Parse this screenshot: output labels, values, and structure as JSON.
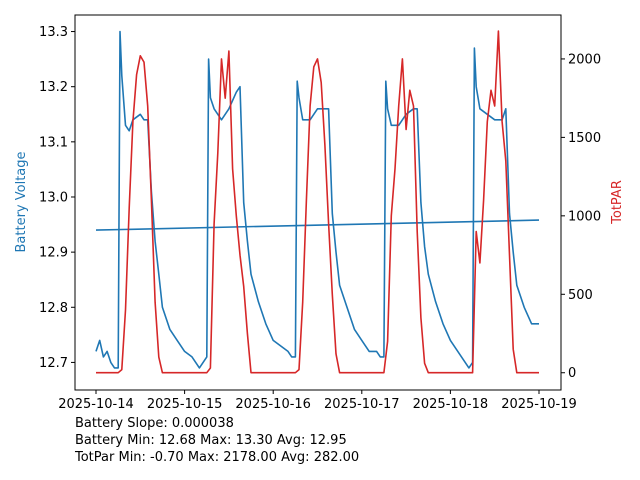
{
  "chart_data": {
    "type": "line",
    "x_type": "date",
    "x_ticks": [
      "2025-10-14",
      "2025-10-15",
      "2025-10-16",
      "2025-10-17",
      "2025-10-18",
      "2025-10-19"
    ],
    "xlim": [
      "2025-10-14",
      "2025-10-19"
    ],
    "y_left": {
      "label": "Battery Voltage",
      "color": "#1f77b4",
      "ylim": [
        12.65,
        13.33
      ],
      "ticks": [
        "12.7",
        "12.8",
        "12.9",
        "13.0",
        "13.1",
        "13.2",
        "13.3"
      ]
    },
    "y_right": {
      "label": "TotPAR",
      "color": "#d62728",
      "ylim": [
        -110,
        2280
      ],
      "ticks": [
        "0",
        "500",
        "1000",
        "1500",
        "2000"
      ]
    },
    "series": [
      {
        "axis": "left",
        "color": "#1f77b4",
        "x": [
          "2025-10-14T00:00",
          "2025-10-14T01:00",
          "2025-10-14T02:00",
          "2025-10-14T03:00",
          "2025-10-14T04:00",
          "2025-10-14T05:00",
          "2025-10-14T06:00",
          "2025-10-14T06:30",
          "2025-10-14T07:00",
          "2025-10-14T08:00",
          "2025-10-14T09:00",
          "2025-10-14T10:00",
          "2025-10-14T12:00",
          "2025-10-14T13:00",
          "2025-10-14T14:00",
          "2025-10-14T15:00",
          "2025-10-14T16:00",
          "2025-10-14T17:00",
          "2025-10-14T18:00",
          "2025-10-14T20:00",
          "2025-10-14T22:00",
          "2025-10-15T00:00",
          "2025-10-15T02:00",
          "2025-10-15T03:00",
          "2025-10-15T04:00",
          "2025-10-15T05:00",
          "2025-10-15T06:00",
          "2025-10-15T06:30",
          "2025-10-15T07:00",
          "2025-10-15T08:00",
          "2025-10-15T10:00",
          "2025-10-15T12:00",
          "2025-10-15T14:00",
          "2025-10-15T15:00",
          "2025-10-15T16:00",
          "2025-10-15T17:00",
          "2025-10-15T18:00",
          "2025-10-15T20:00",
          "2025-10-15T22:00",
          "2025-10-16T00:00",
          "2025-10-16T02:00",
          "2025-10-16T04:00",
          "2025-10-16T05:00",
          "2025-10-16T06:00",
          "2025-10-16T06:30",
          "2025-10-16T07:00",
          "2025-10-16T08:00",
          "2025-10-16T10:00",
          "2025-10-16T12:00",
          "2025-10-16T14:00",
          "2025-10-16T15:00",
          "2025-10-16T16:00",
          "2025-10-16T17:00",
          "2025-10-16T18:00",
          "2025-10-16T20:00",
          "2025-10-16T22:00",
          "2025-10-17T00:00",
          "2025-10-17T02:00",
          "2025-10-17T04:00",
          "2025-10-17T05:00",
          "2025-10-17T06:00",
          "2025-10-17T06:30",
          "2025-10-17T07:00",
          "2025-10-17T08:00",
          "2025-10-17T10:00",
          "2025-10-17T12:00",
          "2025-10-17T14:00",
          "2025-10-17T15:00",
          "2025-10-17T16:00",
          "2025-10-17T17:00",
          "2025-10-17T18:00",
          "2025-10-17T20:00",
          "2025-10-17T22:00",
          "2025-10-18T00:00",
          "2025-10-18T02:00",
          "2025-10-18T04:00",
          "2025-10-18T05:00",
          "2025-10-18T06:00",
          "2025-10-18T06:30",
          "2025-10-18T07:00",
          "2025-10-18T08:00",
          "2025-10-18T10:00",
          "2025-10-18T12:00",
          "2025-10-18T14:00",
          "2025-10-18T15:00",
          "2025-10-18T16:00",
          "2025-10-18T17:00",
          "2025-10-18T18:00",
          "2025-10-18T20:00",
          "2025-10-18T22:00",
          "2025-10-19T00:00"
        ],
        "values": [
          12.72,
          12.74,
          12.71,
          12.72,
          12.7,
          12.69,
          12.69,
          13.3,
          13.22,
          13.13,
          13.12,
          13.14,
          13.15,
          13.14,
          13.14,
          13.01,
          12.92,
          12.86,
          12.8,
          12.76,
          12.74,
          12.72,
          12.71,
          12.7,
          12.69,
          12.7,
          12.71,
          13.25,
          13.18,
          13.16,
          13.14,
          13.16,
          13.19,
          13.2,
          12.99,
          12.92,
          12.86,
          12.81,
          12.77,
          12.74,
          12.73,
          12.72,
          12.71,
          12.71,
          13.21,
          13.18,
          13.14,
          13.14,
          13.16,
          13.16,
          13.16,
          12.97,
          12.9,
          12.84,
          12.8,
          12.76,
          12.74,
          12.72,
          12.72,
          12.71,
          12.71,
          13.21,
          13.16,
          13.13,
          13.13,
          13.15,
          13.16,
          13.16,
          12.99,
          12.91,
          12.86,
          12.81,
          12.77,
          12.74,
          12.72,
          12.7,
          12.69,
          12.7,
          13.27,
          13.2,
          13.16,
          13.15,
          13.14,
          13.14,
          13.16,
          12.97,
          12.9,
          12.84,
          12.8,
          12.77,
          12.77
        ]
      },
      {
        "axis": "left",
        "color": "#1f77b4",
        "x": [
          "2025-10-14",
          "2025-10-19"
        ],
        "values": [
          12.94,
          12.958
        ]
      },
      {
        "axis": "right",
        "color": "#d62728",
        "x": [
          "2025-10-14T00:00",
          "2025-10-14T06:00",
          "2025-10-14T07:00",
          "2025-10-14T08:00",
          "2025-10-14T09:00",
          "2025-10-14T10:00",
          "2025-10-14T11:00",
          "2025-10-14T12:00",
          "2025-10-14T13:00",
          "2025-10-14T14:00",
          "2025-10-14T15:00",
          "2025-10-14T16:00",
          "2025-10-14T17:00",
          "2025-10-14T18:00",
          "2025-10-14T19:00",
          "2025-10-15T06:00",
          "2025-10-15T07:00",
          "2025-10-15T08:00",
          "2025-10-15T09:00",
          "2025-10-15T10:00",
          "2025-10-15T11:00",
          "2025-10-15T12:00",
          "2025-10-15T13:00",
          "2025-10-15T14:00",
          "2025-10-15T15:00",
          "2025-10-15T16:00",
          "2025-10-15T17:00",
          "2025-10-15T18:00",
          "2025-10-15T19:00",
          "2025-10-16T06:00",
          "2025-10-16T07:00",
          "2025-10-16T08:00",
          "2025-10-16T09:00",
          "2025-10-16T10:00",
          "2025-10-16T11:00",
          "2025-10-16T12:00",
          "2025-10-16T13:00",
          "2025-10-16T14:00",
          "2025-10-16T15:00",
          "2025-10-16T16:00",
          "2025-10-16T17:00",
          "2025-10-16T18:00",
          "2025-10-16T19:00",
          "2025-10-17T06:00",
          "2025-10-17T07:00",
          "2025-10-17T08:00",
          "2025-10-17T09:00",
          "2025-10-17T10:00",
          "2025-10-17T11:00",
          "2025-10-17T12:00",
          "2025-10-17T13:00",
          "2025-10-17T14:00",
          "2025-10-17T15:00",
          "2025-10-17T16:00",
          "2025-10-17T17:00",
          "2025-10-17T18:00",
          "2025-10-17T19:00",
          "2025-10-18T06:00",
          "2025-10-18T07:00",
          "2025-10-18T08:00",
          "2025-10-18T09:00",
          "2025-10-18T10:00",
          "2025-10-18T11:00",
          "2025-10-18T12:00",
          "2025-10-18T13:00",
          "2025-10-18T14:00",
          "2025-10-18T15:00",
          "2025-10-18T16:00",
          "2025-10-18T17:00",
          "2025-10-18T18:00",
          "2025-10-18T19:00",
          "2025-10-19T00:00"
        ],
        "values": [
          0,
          0,
          20,
          400,
          1050,
          1600,
          1900,
          2020,
          1980,
          1700,
          1100,
          450,
          100,
          0,
          0,
          0,
          30,
          950,
          1400,
          2000,
          1750,
          2050,
          1300,
          1000,
          750,
          550,
          250,
          0,
          0,
          0,
          20,
          450,
          1100,
          1700,
          1950,
          2000,
          1850,
          1450,
          950,
          500,
          120,
          0,
          0,
          0,
          200,
          1000,
          1300,
          1700,
          2000,
          1550,
          1800,
          1700,
          900,
          350,
          60,
          0,
          0,
          0,
          900,
          700,
          1100,
          1600,
          1800,
          1700,
          2178,
          1600,
          1350,
          750,
          150,
          0,
          0,
          0
        ]
      }
    ]
  },
  "stats": {
    "line1": "Battery Slope: 0.000038",
    "line2": "Battery Min: 12.68 Max: 13.30 Avg: 12.95",
    "line3": "TotPar Min: -0.70 Max: 2178.00 Avg: 282.00"
  }
}
